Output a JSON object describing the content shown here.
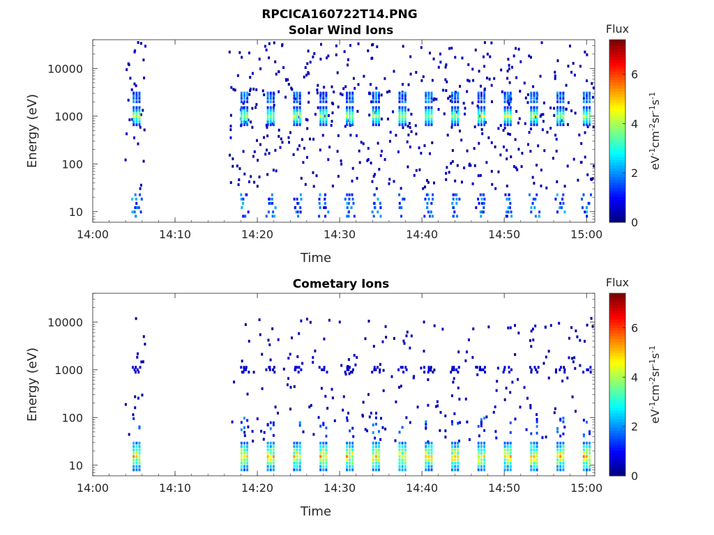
{
  "figure": {
    "filename_title": "RPCICA160722T14.PNG"
  },
  "chart_data": [
    {
      "type": "heatmap",
      "title": "Solar Wind Ions",
      "xlabel": "Time",
      "ylabel": "Energy (eV)",
      "x_range_minutes": [
        0,
        61
      ],
      "y_range_eV": [
        6,
        40000
      ],
      "y_scale": "log",
      "x_ticks": [
        {
          "value": 0,
          "label": "14:00"
        },
        {
          "value": 10,
          "label": "14:10"
        },
        {
          "value": 20,
          "label": "14:20"
        },
        {
          "value": 30,
          "label": "14:30"
        },
        {
          "value": 40,
          "label": "14:40"
        },
        {
          "value": 50,
          "label": "14:50"
        },
        {
          "value": 60,
          "label": "15:00"
        }
      ],
      "y_ticks": [
        {
          "value": 10,
          "label": "10"
        },
        {
          "value": 100,
          "label": "100"
        },
        {
          "value": 1000,
          "label": "1000"
        },
        {
          "value": 10000,
          "label": "10000"
        }
      ],
      "colorbar": {
        "title": "Flux",
        "label": "eV-1cm-2sr-1s-1",
        "range": [
          0,
          7.4
        ],
        "ticks": [
          {
            "value": 0,
            "label": "0"
          },
          {
            "value": 2,
            "label": "2"
          },
          {
            "value": 4,
            "label": "4"
          },
          {
            "value": 6,
            "label": "6"
          }
        ],
        "colormap": "jet"
      },
      "scan_times_minutes": [
        5.2,
        18.3,
        21.5,
        24.7,
        27.9,
        31.1,
        34.3,
        37.5,
        40.7,
        43.9,
        47.1,
        50.3,
        53.5,
        56.7,
        59.9
      ],
      "data_gap_minutes": [
        6.5,
        16.5
      ],
      "peak_energy_eV": 1000,
      "peak_flux": 4.5,
      "low_energy_band_eV": [
        8,
        30
      ],
      "low_energy_flux": 2.0
    },
    {
      "type": "heatmap",
      "title": "Cometary Ions",
      "xlabel": "Time",
      "ylabel": "Energy (eV)",
      "x_range_minutes": [
        0,
        61
      ],
      "y_range_eV": [
        6,
        40000
      ],
      "y_scale": "log",
      "x_ticks": [
        {
          "value": 0,
          "label": "14:00"
        },
        {
          "value": 10,
          "label": "14:10"
        },
        {
          "value": 20,
          "label": "14:20"
        },
        {
          "value": 30,
          "label": "14:30"
        },
        {
          "value": 40,
          "label": "14:40"
        },
        {
          "value": 50,
          "label": "14:50"
        },
        {
          "value": 60,
          "label": "15:00"
        }
      ],
      "y_ticks": [
        {
          "value": 10,
          "label": "10"
        },
        {
          "value": 100,
          "label": "100"
        },
        {
          "value": 1000,
          "label": "1000"
        },
        {
          "value": 10000,
          "label": "10000"
        }
      ],
      "colorbar": {
        "title": "Flux",
        "label": "eV-1cm-2sr-1s-1",
        "range": [
          0,
          7.4
        ],
        "ticks": [
          {
            "value": 0,
            "label": "0"
          },
          {
            "value": 2,
            "label": "2"
          },
          {
            "value": 4,
            "label": "4"
          },
          {
            "value": 6,
            "label": "6"
          }
        ],
        "colormap": "jet"
      },
      "scan_times_minutes": [
        5.2,
        18.3,
        21.5,
        24.7,
        27.9,
        31.1,
        34.3,
        37.5,
        40.7,
        43.9,
        47.1,
        50.3,
        53.5,
        56.7,
        59.9
      ],
      "data_gap_minutes": [
        6.5,
        16.5
      ],
      "peak_energy_eV": 15,
      "peak_flux": 5.5,
      "secondary_band_eV": 1000,
      "secondary_flux": 0.6
    }
  ]
}
